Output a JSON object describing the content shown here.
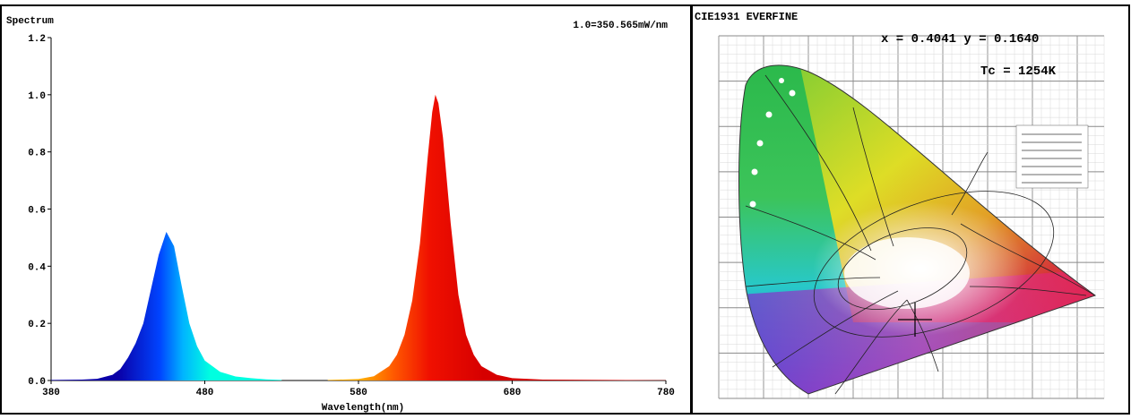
{
  "spectrum": {
    "corner_label": "Spectrum",
    "scale_note": "1.0=350.565mW/nm",
    "chart_data": {
      "type": "area",
      "title": "Spectrum",
      "xlabel": "Wavelength(nm)",
      "ylabel": "",
      "xlim": [
        380,
        780
      ],
      "ylim": [
        0,
        1.2
      ],
      "x_ticks": [
        380,
        480,
        580,
        680,
        780
      ],
      "y_ticks": [
        "0.0",
        "0.2",
        "0.4",
        "0.6",
        "0.8",
        "1.0",
        "1.2"
      ],
      "series": [
        {
          "peak_nm": 455,
          "peak_value": 0.52,
          "colors": [
            "#0a00c8",
            "#0050ff",
            "#00c8ff",
            "#00ffd8"
          ]
        },
        {
          "peak_nm": 630,
          "peak_value": 1.0,
          "colors": [
            "#ff8a00",
            "#ff3a00",
            "#e60000",
            "#d80000"
          ]
        }
      ],
      "points": [
        [
          380,
          0.002
        ],
        [
          400,
          0.003
        ],
        [
          410,
          0.006
        ],
        [
          420,
          0.02
        ],
        [
          425,
          0.04
        ],
        [
          430,
          0.08
        ],
        [
          435,
          0.13
        ],
        [
          440,
          0.2
        ],
        [
          445,
          0.32
        ],
        [
          450,
          0.44
        ],
        [
          455,
          0.52
        ],
        [
          460,
          0.47
        ],
        [
          465,
          0.33
        ],
        [
          470,
          0.2
        ],
        [
          475,
          0.12
        ],
        [
          480,
          0.07
        ],
        [
          490,
          0.03
        ],
        [
          500,
          0.014
        ],
        [
          510,
          0.008
        ],
        [
          520,
          0.004
        ],
        [
          530,
          0.002
        ],
        [
          560,
          0.002
        ],
        [
          580,
          0.005
        ],
        [
          590,
          0.015
        ],
        [
          600,
          0.05
        ],
        [
          605,
          0.09
        ],
        [
          610,
          0.16
        ],
        [
          615,
          0.28
        ],
        [
          620,
          0.48
        ],
        [
          625,
          0.78
        ],
        [
          628,
          0.94
        ],
        [
          630,
          1.0
        ],
        [
          632,
          0.97
        ],
        [
          635,
          0.85
        ],
        [
          640,
          0.55
        ],
        [
          645,
          0.3
        ],
        [
          650,
          0.16
        ],
        [
          655,
          0.09
        ],
        [
          660,
          0.05
        ],
        [
          670,
          0.02
        ],
        [
          680,
          0.008
        ],
        [
          700,
          0.003
        ],
        [
          780,
          0.001
        ]
      ]
    }
  },
  "cie": {
    "title": "CIE1931 EVERFINE",
    "xy_readout": "x = 0.4041 y = 0.1640",
    "tc_readout": "Tc = 1254K",
    "marker": {
      "x": 0.4041,
      "y": 0.164
    }
  }
}
